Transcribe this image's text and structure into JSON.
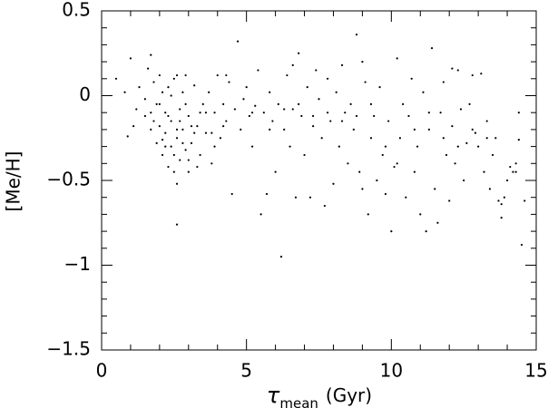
{
  "chart_data": {
    "type": "scatter",
    "ylabel": "[Me/H]",
    "xlabel_symbol": "τ",
    "xlabel_subscript": "mean",
    "xlabel_unit": "(Gyr)",
    "color": "#000000",
    "xlim": [
      0,
      15
    ],
    "ylim": [
      -1.5,
      0.5
    ],
    "xticks": [
      0,
      5,
      10,
      15
    ],
    "yticks": [
      {
        "value": -1.5,
        "label": "−1.5"
      },
      {
        "value": -1,
        "label": "−1"
      },
      {
        "value": -0.5,
        "label": "−0.5"
      },
      0,
      0.5
    ],
    "xminorticks": [
      1,
      2,
      3,
      4,
      6,
      7,
      8,
      9,
      11,
      12,
      13,
      14
    ],
    "yminorticks": [
      -1.4,
      -1.3,
      -1.2,
      -1.1,
      -0.9,
      -0.8,
      -0.7,
      -0.6,
      -0.4,
      -0.3,
      -0.2,
      -0.1,
      0.1,
      0.2,
      0.3,
      0.4
    ],
    "x": [
      0.8,
      0.9,
      1.0,
      1.2,
      1.3,
      1.5,
      1.6,
      1.7,
      1.7,
      1.8,
      1.8,
      1.9,
      1.9,
      2.0,
      2.0,
      2.1,
      2.1,
      2.2,
      2.2,
      2.3,
      2.3,
      2.4,
      2.4,
      2.5,
      2.5,
      2.6,
      2.6,
      2.7,
      2.7,
      2.8,
      2.8,
      2.9,
      2.9,
      3.0,
      3.0,
      3.1,
      3.2,
      3.3,
      3.4,
      3.5,
      3.6,
      3.7,
      3.8,
      3.9,
      4.0,
      4.1,
      4.2,
      4.3,
      4.4,
      4.5,
      4.6,
      4.7,
      4.8,
      4.9,
      5.0,
      5.1,
      5.2,
      5.3,
      5.4,
      5.5,
      5.6,
      5.7,
      5.8,
      5.9,
      6.0,
      6.1,
      6.2,
      6.3,
      6.4,
      6.5,
      6.6,
      6.7,
      6.8,
      6.9,
      7.0,
      7.1,
      7.2,
      7.3,
      7.4,
      7.5,
      7.6,
      7.7,
      7.8,
      7.9,
      8.0,
      8.1,
      8.2,
      8.3,
      8.4,
      8.5,
      8.6,
      8.7,
      8.8,
      8.9,
      9.0,
      9.1,
      9.2,
      9.3,
      9.4,
      9.5,
      9.6,
      9.7,
      9.8,
      9.9,
      10.0,
      10.1,
      10.2,
      10.3,
      10.4,
      10.5,
      10.6,
      10.7,
      10.8,
      10.9,
      11.0,
      11.1,
      11.2,
      11.3,
      11.4,
      11.5,
      11.6,
      11.7,
      11.8,
      11.9,
      12.0,
      12.1,
      12.2,
      12.3,
      12.4,
      12.5,
      12.6,
      12.7,
      12.8,
      12.9,
      13.0,
      13.1,
      13.2,
      13.3,
      13.4,
      13.5,
      13.6,
      13.7,
      13.8,
      13.9,
      14.0,
      14.1,
      14.2,
      14.3,
      14.4,
      14.5,
      1.5,
      1.7,
      2.0,
      2.2,
      2.4,
      2.6,
      2.8,
      3.0,
      3.2,
      3.4,
      2.1,
      2.3,
      2.5,
      2.7,
      2.9,
      3.1,
      3.3,
      3.6,
      3.9,
      4.2,
      5.2,
      5.8,
      6.3,
      6.8,
      7.3,
      7.8,
      8.3,
      8.8,
      9.3,
      9.8,
      10.2,
      10.8,
      11.3,
      11.8,
      12.3,
      12.8,
      13.3,
      13.8,
      14.3,
      14.6,
      2.6,
      4.3,
      0.5,
      1.1,
      2.6,
      3.8,
      6.6,
      9.0,
      12.1,
      14.4
    ],
    "values": [
      0.02,
      -0.24,
      0.22,
      -0.08,
      0.05,
      -0.12,
      0.16,
      0.24,
      -0.2,
      0.08,
      -0.15,
      -0.05,
      -0.28,
      0.12,
      -0.18,
      -0.35,
      0.02,
      -0.22,
      -0.1,
      -0.42,
      0.05,
      -0.3,
      -0.15,
      -0.45,
      0.1,
      -0.25,
      -0.52,
      -0.08,
      -0.38,
      0.02,
      -0.2,
      -0.32,
      0.12,
      -0.12,
      -0.45,
      -0.28,
      0.06,
      -0.18,
      -0.35,
      -0.05,
      -0.22,
      0.02,
      -0.4,
      -0.1,
      0.12,
      -0.25,
      -0.05,
      -0.15,
      0.08,
      -0.58,
      -0.08,
      0.32,
      -0.2,
      -0.02,
      0.05,
      -0.12,
      -0.3,
      -0.06,
      0.15,
      -0.7,
      -0.1,
      -0.58,
      0.02,
      -0.15,
      -0.45,
      -0.05,
      -0.95,
      -0.2,
      0.12,
      -0.3,
      -0.08,
      -0.6,
      0.25,
      -0.12,
      -0.35,
      0.05,
      -0.6,
      -0.18,
      0.15,
      -0.02,
      -0.25,
      -0.65,
      0.1,
      -0.15,
      -0.52,
      0.02,
      -0.3,
      0.18,
      -0.1,
      -0.4,
      -0.05,
      -0.2,
      0.36,
      -0.45,
      -0.55,
      0.08,
      -0.7,
      -0.25,
      -0.12,
      -0.5,
      0.05,
      -0.35,
      -0.58,
      -0.15,
      -0.8,
      -0.42,
      0.22,
      -0.25,
      -0.05,
      -0.6,
      -0.12,
      0.1,
      -0.45,
      -0.3,
      -0.7,
      0.02,
      -0.8,
      -0.2,
      0.28,
      -0.55,
      -0.75,
      -0.1,
      0.08,
      -0.35,
      -0.62,
      -0.18,
      -0.4,
      0.15,
      -0.08,
      -0.5,
      -0.28,
      -0.05,
      0.12,
      -0.22,
      -0.3,
      0.13,
      -0.45,
      -0.15,
      -0.55,
      -0.35,
      -0.25,
      -0.62,
      -0.72,
      -0.6,
      -0.5,
      -0.42,
      -0.45,
      -0.4,
      -0.1,
      -0.88,
      -0.02,
      -0.1,
      -0.05,
      -0.3,
      0.0,
      -0.2,
      -0.28,
      -0.38,
      -0.22,
      -0.1,
      -0.26,
      -0.12,
      -0.35,
      -0.15,
      -0.05,
      -0.18,
      -0.42,
      -0.1,
      -0.3,
      -0.18,
      -0.1,
      -0.2,
      -0.08,
      -0.05,
      -0.12,
      -0.1,
      -0.15,
      -0.12,
      -0.05,
      -0.3,
      -0.4,
      -0.2,
      -0.1,
      -0.25,
      -0.3,
      -0.2,
      -0.25,
      -0.64,
      -0.45,
      -0.62,
      -0.76,
      0.12,
      0.1,
      -0.18,
      0.12,
      -0.22,
      0.18,
      0.2,
      0.16,
      -0.26
    ]
  }
}
